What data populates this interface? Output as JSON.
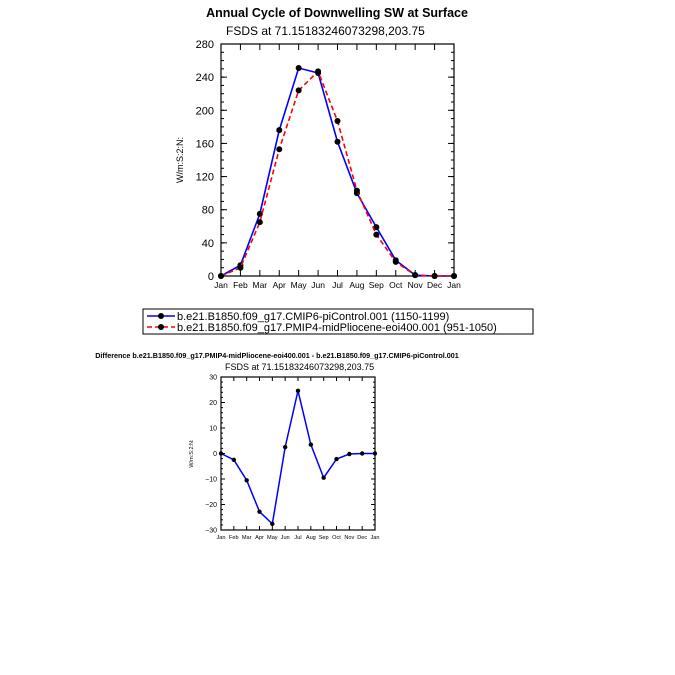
{
  "chart_data": [
    {
      "type": "line",
      "title": "Annual Cycle of Downwelling SW at Surface",
      "subtitle": "FSDS at 71.15183246073298,203.75",
      "ylabel": "W/m:S:2:N:",
      "xlabel": "",
      "categories": [
        "Jan",
        "Feb",
        "Mar",
        "Apr",
        "May",
        "Jun",
        "Jul",
        "Aug",
        "Sep",
        "Oct",
        "Nov",
        "Dec",
        "Jan"
      ],
      "ylim": [
        0,
        280
      ],
      "yticks": [
        0,
        40,
        80,
        120,
        160,
        200,
        240,
        280
      ],
      "legend": "bottom",
      "series": [
        {
          "name": "b.e21.B1850.f09_g17.CMIP6-piControl.001 (1150-1199)",
          "color": "#0000ff",
          "dash": false,
          "values": [
            0,
            13,
            75,
            176,
            251,
            245,
            162,
            100,
            59,
            19,
            1,
            0,
            0
          ]
        },
        {
          "name": "b.e21.B1850.f09_g17.PMIP4-midPliocene-eoi400.001 (951-1050)",
          "color": "#ff0000",
          "dash": true,
          "values": [
            0,
            10,
            65,
            153,
            224,
            247,
            187,
            103,
            50,
            17,
            1,
            0,
            0
          ]
        }
      ]
    },
    {
      "type": "line",
      "title": "Difference b.e21.B1850.f09_g17.PMIP4-midPliocene-eoi400.001 - b.e21.B1850.f09_g17.CMIP6-piControl.001",
      "subtitle": "FSDS at 71.15183246073298,203.75",
      "ylabel": "W/m:S:2:N:",
      "xlabel": "",
      "categories": [
        "Jan",
        "Feb",
        "Mar",
        "Apr",
        "May",
        "Jun",
        "Jul",
        "Aug",
        "Sep",
        "Oct",
        "Nov",
        "Dec",
        "Jan"
      ],
      "ylim": [
        -30,
        30
      ],
      "yticks": [
        -30,
        -20,
        -10,
        0,
        10,
        20,
        30
      ],
      "series": [
        {
          "name": "difference",
          "color": "#0000ff",
          "dash": false,
          "values": [
            0,
            -2.5,
            -10.5,
            -22.8,
            -27.6,
            2.5,
            24.6,
            3.5,
            -9.5,
            -2.2,
            -0.2,
            0,
            0
          ]
        }
      ]
    }
  ]
}
